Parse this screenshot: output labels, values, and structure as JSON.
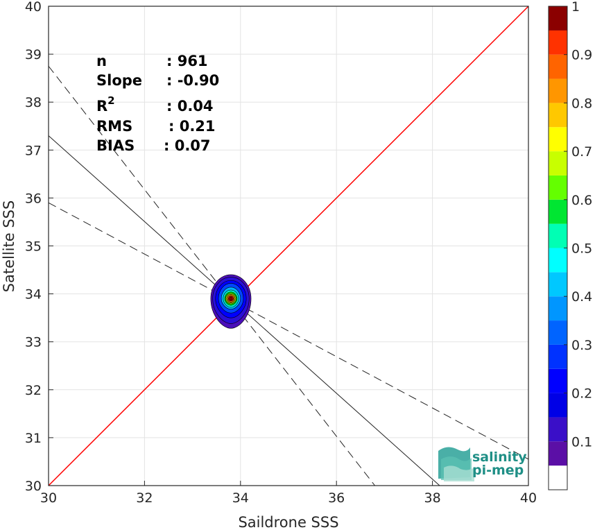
{
  "chart_data": {
    "type": "density-scatter",
    "xlabel": "Saildrone SSS",
    "ylabel": "Satellite SSS",
    "xlim": [
      30,
      40
    ],
    "ylim": [
      30,
      40
    ],
    "x_ticks": [
      30,
      32,
      34,
      36,
      38,
      40
    ],
    "y_ticks": [
      30,
      31,
      32,
      33,
      34,
      35,
      36,
      37,
      38,
      39,
      40
    ],
    "grid": true,
    "stats": [
      {
        "key": "n",
        "sup": "",
        "value": ": 961"
      },
      {
        "key": "Slope",
        "sup": "",
        "value": ": -0.90"
      },
      {
        "key": "R",
        "sup": "2",
        "value": ": 0.04"
      },
      {
        "key": "RMS",
        "sup": "",
        "value": ": 0.21"
      },
      {
        "key": "BIAS",
        "sup": "",
        "value": ": 0.07"
      }
    ],
    "identity_line": {
      "color": "#ff0000",
      "from": [
        30,
        30
      ],
      "to": [
        40,
        40
      ]
    },
    "regression_line": {
      "slope": -0.9,
      "from": [
        30,
        37.3
      ],
      "to": [
        38.15,
        30
      ]
    },
    "confidence_bounds": [
      {
        "from": [
          30,
          38.75
        ],
        "to": [
          36.8,
          30
        ]
      },
      {
        "from": [
          30,
          35.9
        ],
        "to": [
          40,
          30.55
        ]
      }
    ],
    "density_center": [
      33.8,
      33.9
    ],
    "contours": [
      {
        "level": 0.05,
        "color": "#4b0fb9",
        "half_width": 0.42,
        "top": 34.4,
        "bottom": 33.28
      },
      {
        "level": 0.1,
        "color": "#2a0fd6",
        "half_width": 0.38,
        "top": 34.35,
        "bottom": 33.38
      },
      {
        "level": 0.15,
        "color": "#0000ff",
        "half_width": 0.32,
        "top": 34.28,
        "bottom": 33.5
      },
      {
        "level": 0.2,
        "color": "#0046ff",
        "half_width": 0.26,
        "top": 34.22,
        "bottom": 33.6
      },
      {
        "level": 0.3,
        "color": "#00b4ff",
        "half_width": 0.2,
        "top": 34.14,
        "bottom": 33.68
      },
      {
        "level": 0.4,
        "color": "#00ffd0",
        "half_width": 0.16,
        "top": 34.08,
        "bottom": 33.72
      },
      {
        "level": 0.5,
        "color": "#00e600",
        "half_width": 0.13,
        "top": 34.04,
        "bottom": 33.76
      },
      {
        "level": 0.6,
        "color": "#c8ff00",
        "half_width": 0.11,
        "top": 34.01,
        "bottom": 33.79
      },
      {
        "level": 0.7,
        "color": "#ffc800",
        "half_width": 0.09,
        "top": 33.99,
        "bottom": 33.81
      },
      {
        "level": 0.8,
        "color": "#ff6400",
        "half_width": 0.07,
        "top": 33.97,
        "bottom": 33.83
      },
      {
        "level": 0.9,
        "color": "#dc0000",
        "half_width": 0.05,
        "top": 33.95,
        "bottom": 33.85
      },
      {
        "level": 1.0,
        "color": "#8b0000",
        "half_width": 0.03,
        "top": 33.93,
        "bottom": 33.87
      }
    ],
    "colorbar": {
      "ticks": [
        0.1,
        0.2,
        0.3,
        0.4,
        0.5,
        0.6,
        0.7,
        0.8,
        0.9,
        1
      ],
      "levels": [
        0,
        0.05,
        0.1,
        0.15,
        0.2,
        0.25,
        0.3,
        0.35,
        0.4,
        0.45,
        0.5,
        0.55,
        0.6,
        0.65,
        0.7,
        0.75,
        0.8,
        0.85,
        0.9,
        0.95,
        1.0
      ],
      "colors": [
        "#ffffff",
        "#5b0fa6",
        "#3a0fc8",
        "#0000e6",
        "#0000ff",
        "#0032ff",
        "#0064ff",
        "#0096ff",
        "#00c8ff",
        "#00ffff",
        "#00ffb4",
        "#00e632",
        "#64ff00",
        "#c8ff00",
        "#ffff00",
        "#ffc800",
        "#ff9600",
        "#ff6400",
        "#ff3200",
        "#e60000",
        "#8b0000"
      ]
    }
  },
  "logo": {
    "line1": "salinity",
    "line2": "pi-mep"
  }
}
